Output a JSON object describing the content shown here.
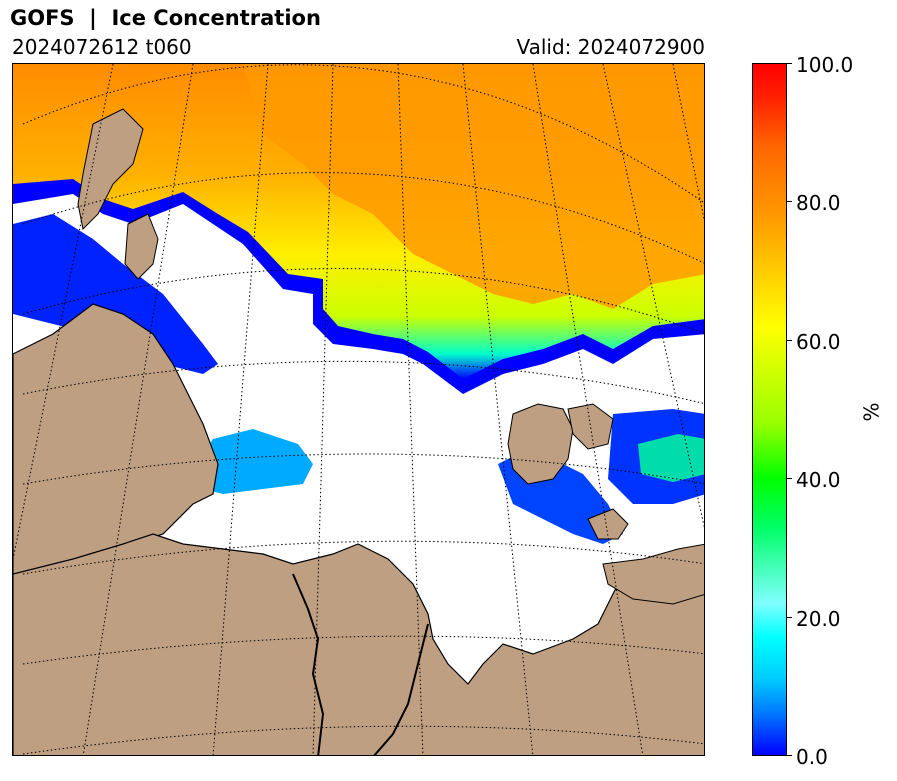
{
  "header": {
    "title": "GOFS  |  Ice Concentration",
    "run": "2024072612 t060",
    "valid": "Valid: 2024072900"
  },
  "colorbar": {
    "unit": "%",
    "ticks": [
      "100.0",
      "80.0",
      "60.0",
      "40.0",
      "20.0",
      "0.0"
    ],
    "min": 0,
    "max": 100
  },
  "colors": {
    "land": "#bf9f82",
    "ocean": "#ffffff",
    "ice_high": "#ff8c00",
    "ice_mid": "#ffff00",
    "ice_low": "#0000ff"
  }
}
